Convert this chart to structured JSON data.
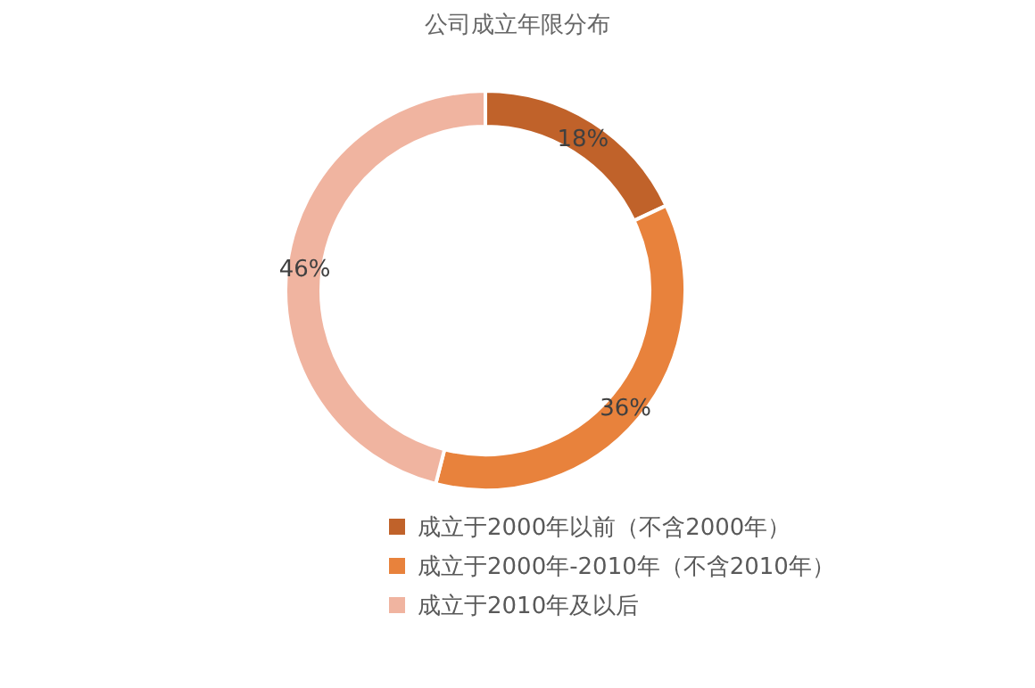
{
  "chart_data": {
    "type": "donut",
    "title": "公司成立年限分布",
    "categories": [
      "成立于2000年以前（不含2000年）",
      "成立于2000年-2010年（不含2010年）",
      "成立于2010年及以后"
    ],
    "values": [
      18,
      36,
      46
    ],
    "colors": [
      "#c0622a",
      "#e8823c",
      "#f0b4a0"
    ],
    "value_labels": [
      "18%",
      "36%",
      "46%"
    ],
    "legend": "bottom"
  }
}
